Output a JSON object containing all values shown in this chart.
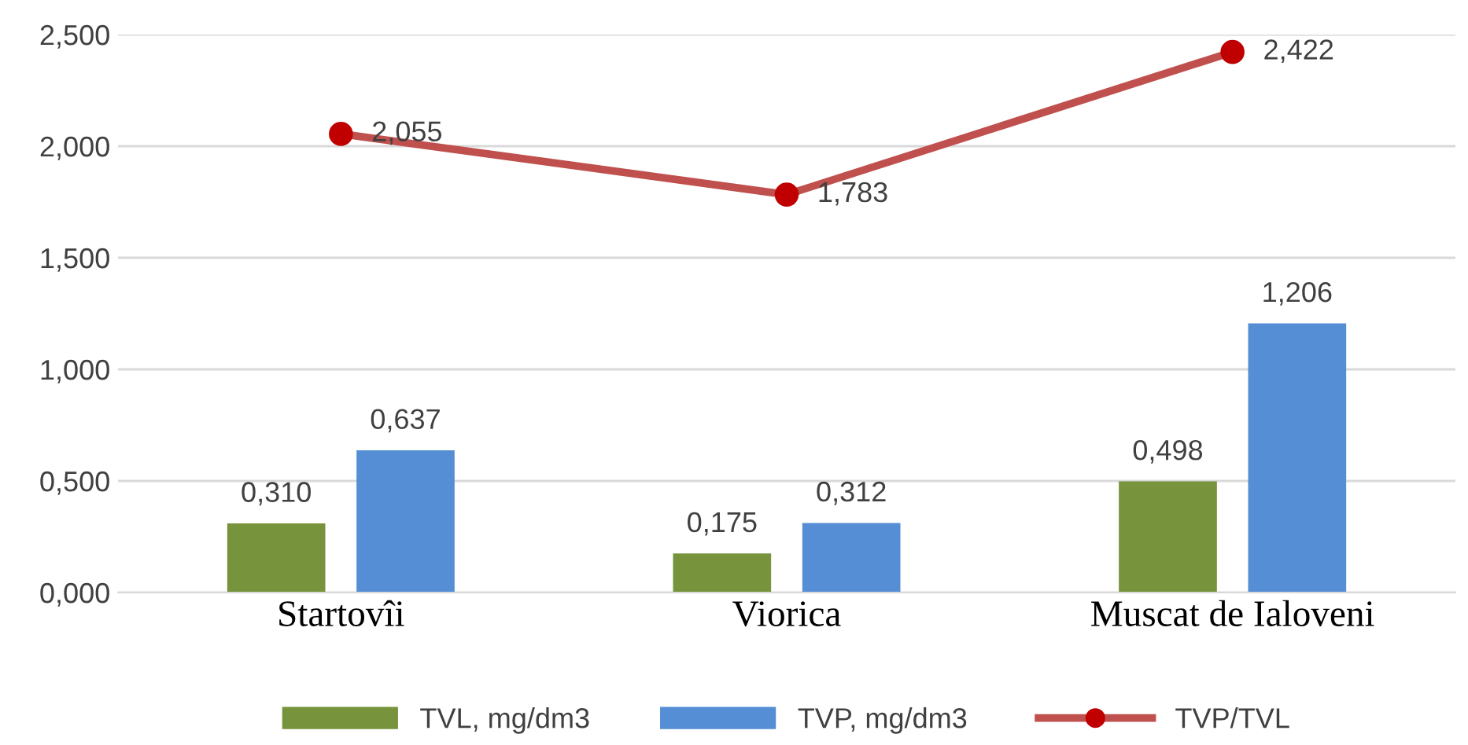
{
  "chart_data": {
    "type": "bar",
    "categories": [
      "Startovîi",
      "Viorica",
      "Muscat de Ialoveni"
    ],
    "series": [
      {
        "name": "TVL, mg/dm3",
        "color": "#77933c",
        "values": [
          0.31,
          0.175,
          0.498
        ],
        "value_labels": [
          "0,310",
          "0,175",
          "0,498"
        ]
      },
      {
        "name": "TVP, mg/dm3",
        "color": "#558ed5",
        "values": [
          0.637,
          0.312,
          1.206
        ],
        "value_labels": [
          "0,637",
          "0,312",
          "1,206"
        ]
      },
      {
        "name": "TVP/TVL",
        "type": "line",
        "color": "#c0504d",
        "values": [
          2.055,
          1.783,
          2.422
        ],
        "value_labels": [
          "2,055",
          "1,783",
          "2,422"
        ]
      }
    ],
    "ylim": [
      0,
      2.5
    ],
    "yticks": [
      {
        "value": 0,
        "label": "0,000"
      },
      {
        "value": 0.5,
        "label": "0,500"
      },
      {
        "value": 1,
        "label": "1,000"
      },
      {
        "value": 1.5,
        "label": "1,500"
      },
      {
        "value": 2,
        "label": "2,000"
      },
      {
        "value": 2.5,
        "label": "2,500"
      }
    ],
    "grid": "y",
    "legend": "bottom",
    "marker": "circle"
  }
}
